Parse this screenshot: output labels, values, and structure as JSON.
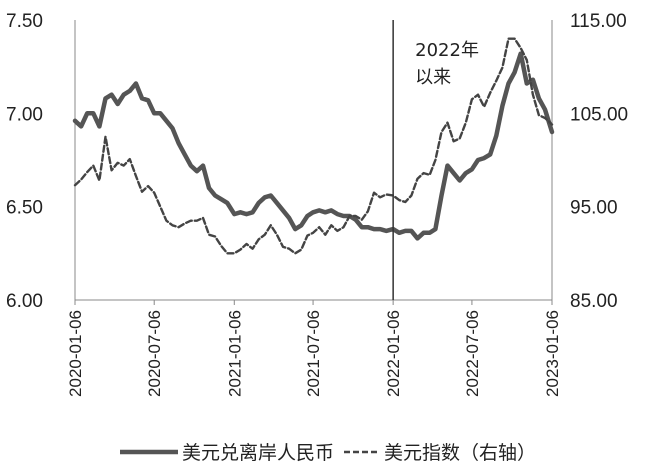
{
  "chart_data": {
    "type": "line",
    "left_axis": {
      "ylim": [
        6.0,
        7.5
      ],
      "ticks": [
        "6.00",
        "6.50",
        "7.00",
        "7.50"
      ]
    },
    "right_axis": {
      "ylim": [
        85,
        115
      ],
      "ticks": [
        "85.00",
        "95.00",
        "105.00",
        "115.00"
      ]
    },
    "x_ticks": [
      "2020-01-06",
      "2020-07-06",
      "2021-01-06",
      "2021-07-06",
      "2022-01-06",
      "2022-07-06",
      "2023-01-06"
    ],
    "annotation": {
      "lines": [
        "2022年",
        "以来"
      ],
      "marker_x": "2022-01-06"
    },
    "colors": {
      "cnh": "#555555",
      "dxy": "#444444",
      "axis": "#888888",
      "vline": "#333333"
    },
    "legend_position": "bottom",
    "series": [
      {
        "name": "美元兑离岸人民币",
        "axis": "left",
        "style": "solid",
        "x": [
          "2020-01-06",
          "2020-01-20",
          "2020-02-03",
          "2020-02-17",
          "2020-03-02",
          "2020-03-16",
          "2020-03-30",
          "2020-04-13",
          "2020-04-27",
          "2020-05-11",
          "2020-05-25",
          "2020-06-08",
          "2020-06-22",
          "2020-07-06",
          "2020-07-20",
          "2020-08-03",
          "2020-08-17",
          "2020-08-31",
          "2020-09-14",
          "2020-09-28",
          "2020-10-12",
          "2020-10-26",
          "2020-11-09",
          "2020-11-23",
          "2020-12-07",
          "2020-12-21",
          "2021-01-06",
          "2021-01-20",
          "2021-02-03",
          "2021-02-17",
          "2021-03-03",
          "2021-03-17",
          "2021-03-31",
          "2021-04-14",
          "2021-04-28",
          "2021-05-12",
          "2021-05-26",
          "2021-06-09",
          "2021-06-23",
          "2021-07-06",
          "2021-07-20",
          "2021-08-03",
          "2021-08-17",
          "2021-08-31",
          "2021-09-14",
          "2021-09-28",
          "2021-10-12",
          "2021-10-26",
          "2021-11-09",
          "2021-11-23",
          "2021-12-07",
          "2021-12-21",
          "2022-01-06",
          "2022-01-20",
          "2022-02-03",
          "2022-02-17",
          "2022-03-03",
          "2022-03-17",
          "2022-03-31",
          "2022-04-13",
          "2022-04-27",
          "2022-05-11",
          "2022-05-25",
          "2022-06-08",
          "2022-06-22",
          "2022-07-06",
          "2022-07-20",
          "2022-08-03",
          "2022-08-17",
          "2022-08-31",
          "2022-09-14",
          "2022-09-28",
          "2022-10-12",
          "2022-10-26",
          "2022-11-09",
          "2022-11-23",
          "2022-12-07",
          "2022-12-21",
          "2023-01-06"
        ],
        "values": [
          6.96,
          6.93,
          7.0,
          7.0,
          6.93,
          7.08,
          7.1,
          7.05,
          7.1,
          7.12,
          7.16,
          7.08,
          7.07,
          7.0,
          7.0,
          6.96,
          6.92,
          6.84,
          6.78,
          6.72,
          6.69,
          6.72,
          6.6,
          6.56,
          6.54,
          6.52,
          6.46,
          6.47,
          6.46,
          6.47,
          6.52,
          6.55,
          6.56,
          6.52,
          6.48,
          6.44,
          6.38,
          6.4,
          6.45,
          6.47,
          6.48,
          6.47,
          6.48,
          6.46,
          6.45,
          6.45,
          6.43,
          6.39,
          6.39,
          6.38,
          6.38,
          6.37,
          6.38,
          6.36,
          6.37,
          6.37,
          6.33,
          6.36,
          6.36,
          6.38,
          6.56,
          6.72,
          6.68,
          6.64,
          6.68,
          6.7,
          6.75,
          6.76,
          6.78,
          6.88,
          7.04,
          7.16,
          7.22,
          7.32,
          7.16,
          7.18,
          7.08,
          7.02,
          6.9
        ]
      },
      {
        "name": "美元指数（右轴）",
        "axis": "right",
        "style": "dashed",
        "x": [
          "2020-01-06",
          "2020-01-20",
          "2020-02-03",
          "2020-02-17",
          "2020-03-02",
          "2020-03-16",
          "2020-03-30",
          "2020-04-13",
          "2020-04-27",
          "2020-05-11",
          "2020-05-25",
          "2020-06-08",
          "2020-06-22",
          "2020-07-06",
          "2020-07-20",
          "2020-08-03",
          "2020-08-17",
          "2020-08-31",
          "2020-09-14",
          "2020-09-28",
          "2020-10-12",
          "2020-10-26",
          "2020-11-09",
          "2020-11-23",
          "2020-12-07",
          "2020-12-21",
          "2021-01-06",
          "2021-01-20",
          "2021-02-03",
          "2021-02-17",
          "2021-03-03",
          "2021-03-17",
          "2021-03-31",
          "2021-04-14",
          "2021-04-28",
          "2021-05-12",
          "2021-05-26",
          "2021-06-09",
          "2021-06-23",
          "2021-07-06",
          "2021-07-20",
          "2021-08-03",
          "2021-08-17",
          "2021-08-31",
          "2021-09-14",
          "2021-09-28",
          "2021-10-12",
          "2021-10-26",
          "2021-11-09",
          "2021-11-23",
          "2021-12-07",
          "2021-12-21",
          "2022-01-06",
          "2022-01-20",
          "2022-02-03",
          "2022-02-17",
          "2022-03-03",
          "2022-03-17",
          "2022-03-31",
          "2022-04-13",
          "2022-04-27",
          "2022-05-11",
          "2022-05-25",
          "2022-06-08",
          "2022-06-22",
          "2022-07-06",
          "2022-07-20",
          "2022-08-03",
          "2022-08-17",
          "2022-08-31",
          "2022-09-14",
          "2022-09-28",
          "2022-10-12",
          "2022-10-26",
          "2022-11-09",
          "2022-11-23",
          "2022-12-07",
          "2022-12-21",
          "2023-01-06"
        ],
        "values": [
          97.3,
          97.9,
          98.7,
          99.4,
          97.8,
          102.5,
          98.9,
          99.7,
          99.4,
          100.1,
          98.3,
          96.6,
          97.2,
          96.5,
          95.0,
          93.5,
          93.0,
          92.8,
          93.2,
          93.5,
          93.5,
          93.8,
          92.0,
          91.8,
          90.8,
          90.0,
          90.0,
          90.4,
          91.0,
          90.5,
          91.5,
          92.0,
          93.0,
          92.0,
          90.7,
          90.5,
          90.0,
          90.4,
          91.9,
          92.2,
          92.8,
          92.0,
          93.0,
          92.4,
          92.8,
          94.0,
          94.0,
          93.6,
          94.5,
          96.5,
          96.0,
          96.3,
          96.2,
          95.7,
          95.5,
          96.2,
          98.0,
          98.6,
          98.4,
          100.0,
          103.0,
          104.0,
          102.0,
          102.3,
          104.0,
          106.5,
          107.0,
          105.7,
          107.2,
          108.5,
          109.9,
          113.0,
          113.0,
          112.0,
          110.7,
          107.0,
          104.8,
          104.5,
          103.8
        ]
      }
    ]
  }
}
